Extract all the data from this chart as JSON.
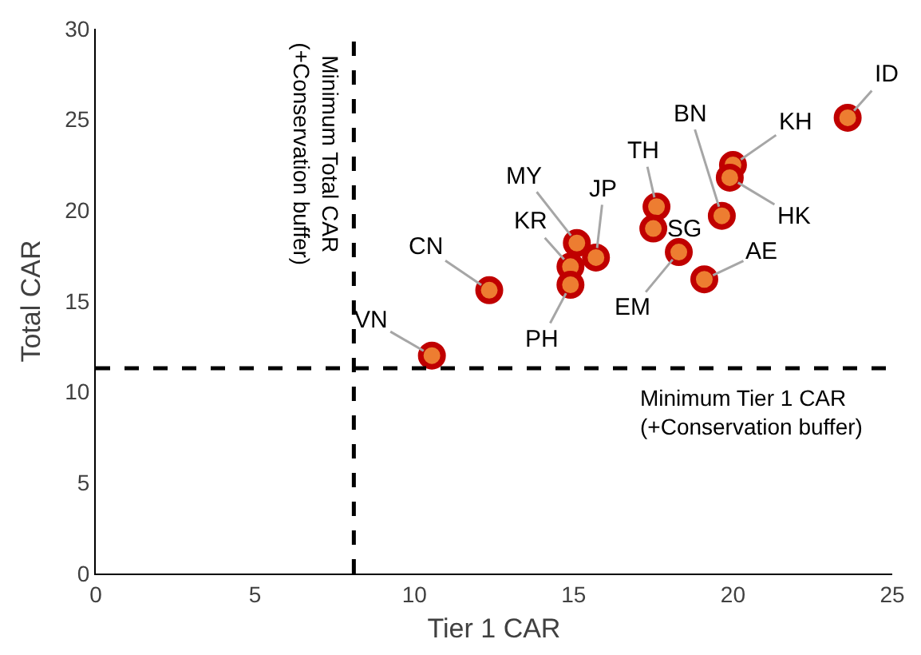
{
  "chart_data": {
    "type": "scatter",
    "xlabel": "Tier 1 CAR",
    "ylabel": "Total CAR",
    "xlim": [
      0,
      25
    ],
    "ylim": [
      0,
      30
    ],
    "xticks": [
      0,
      5,
      10,
      15,
      20,
      25
    ],
    "yticks": [
      0,
      5,
      10,
      15,
      20,
      25,
      30
    ],
    "marker": "circle",
    "series": [
      {
        "color": "#ed7d31",
        "x": [
          10.55,
          12.35,
          14.9,
          14.9,
          15.1,
          15.7,
          17.6,
          17.5,
          18.3,
          19.1,
          19.65,
          20.0,
          19.9,
          23.6
        ],
        "values": [
          12.0,
          15.6,
          16.9,
          15.9,
          18.2,
          17.4,
          20.2,
          19.0,
          17.7,
          16.2,
          19.7,
          22.5,
          21.8,
          25.1
        ]
      }
    ],
    "annotations": [
      {
        "text": "VN",
        "x": 10.55,
        "y": 12.0
      },
      {
        "text": "CN",
        "x": 12.35,
        "y": 15.6
      },
      {
        "text": "KR",
        "x": 14.9,
        "y": 16.9
      },
      {
        "text": "PH",
        "x": 14.9,
        "y": 15.9
      },
      {
        "text": "MY",
        "x": 15.1,
        "y": 18.2
      },
      {
        "text": "JP",
        "x": 15.7,
        "y": 17.4
      },
      {
        "text": "TH",
        "x": 17.6,
        "y": 20.2
      },
      {
        "text": "SG",
        "x": 17.5,
        "y": 19.0
      },
      {
        "text": "EM",
        "x": 18.3,
        "y": 17.7
      },
      {
        "text": "AE",
        "x": 19.1,
        "y": 16.2
      },
      {
        "text": "BN",
        "x": 19.65,
        "y": 19.7
      },
      {
        "text": "KH",
        "x": 20.0,
        "y": 22.5
      },
      {
        "text": "HK",
        "x": 19.9,
        "y": 21.8
      },
      {
        "text": "ID",
        "x": 23.6,
        "y": 25.1
      }
    ],
    "ref_lines": [
      {
        "axis": "x",
        "value": 8.1,
        "label": "Minimum Total CAR\n(+Conservation buffer)",
        "color": "#000000",
        "line_style": "dashed"
      },
      {
        "axis": "y",
        "value": 11.3,
        "label": "Minimum Tier 1 CAR\n(+Conservation buffer)",
        "color": "#000000",
        "line_style": "dashed"
      }
    ]
  }
}
